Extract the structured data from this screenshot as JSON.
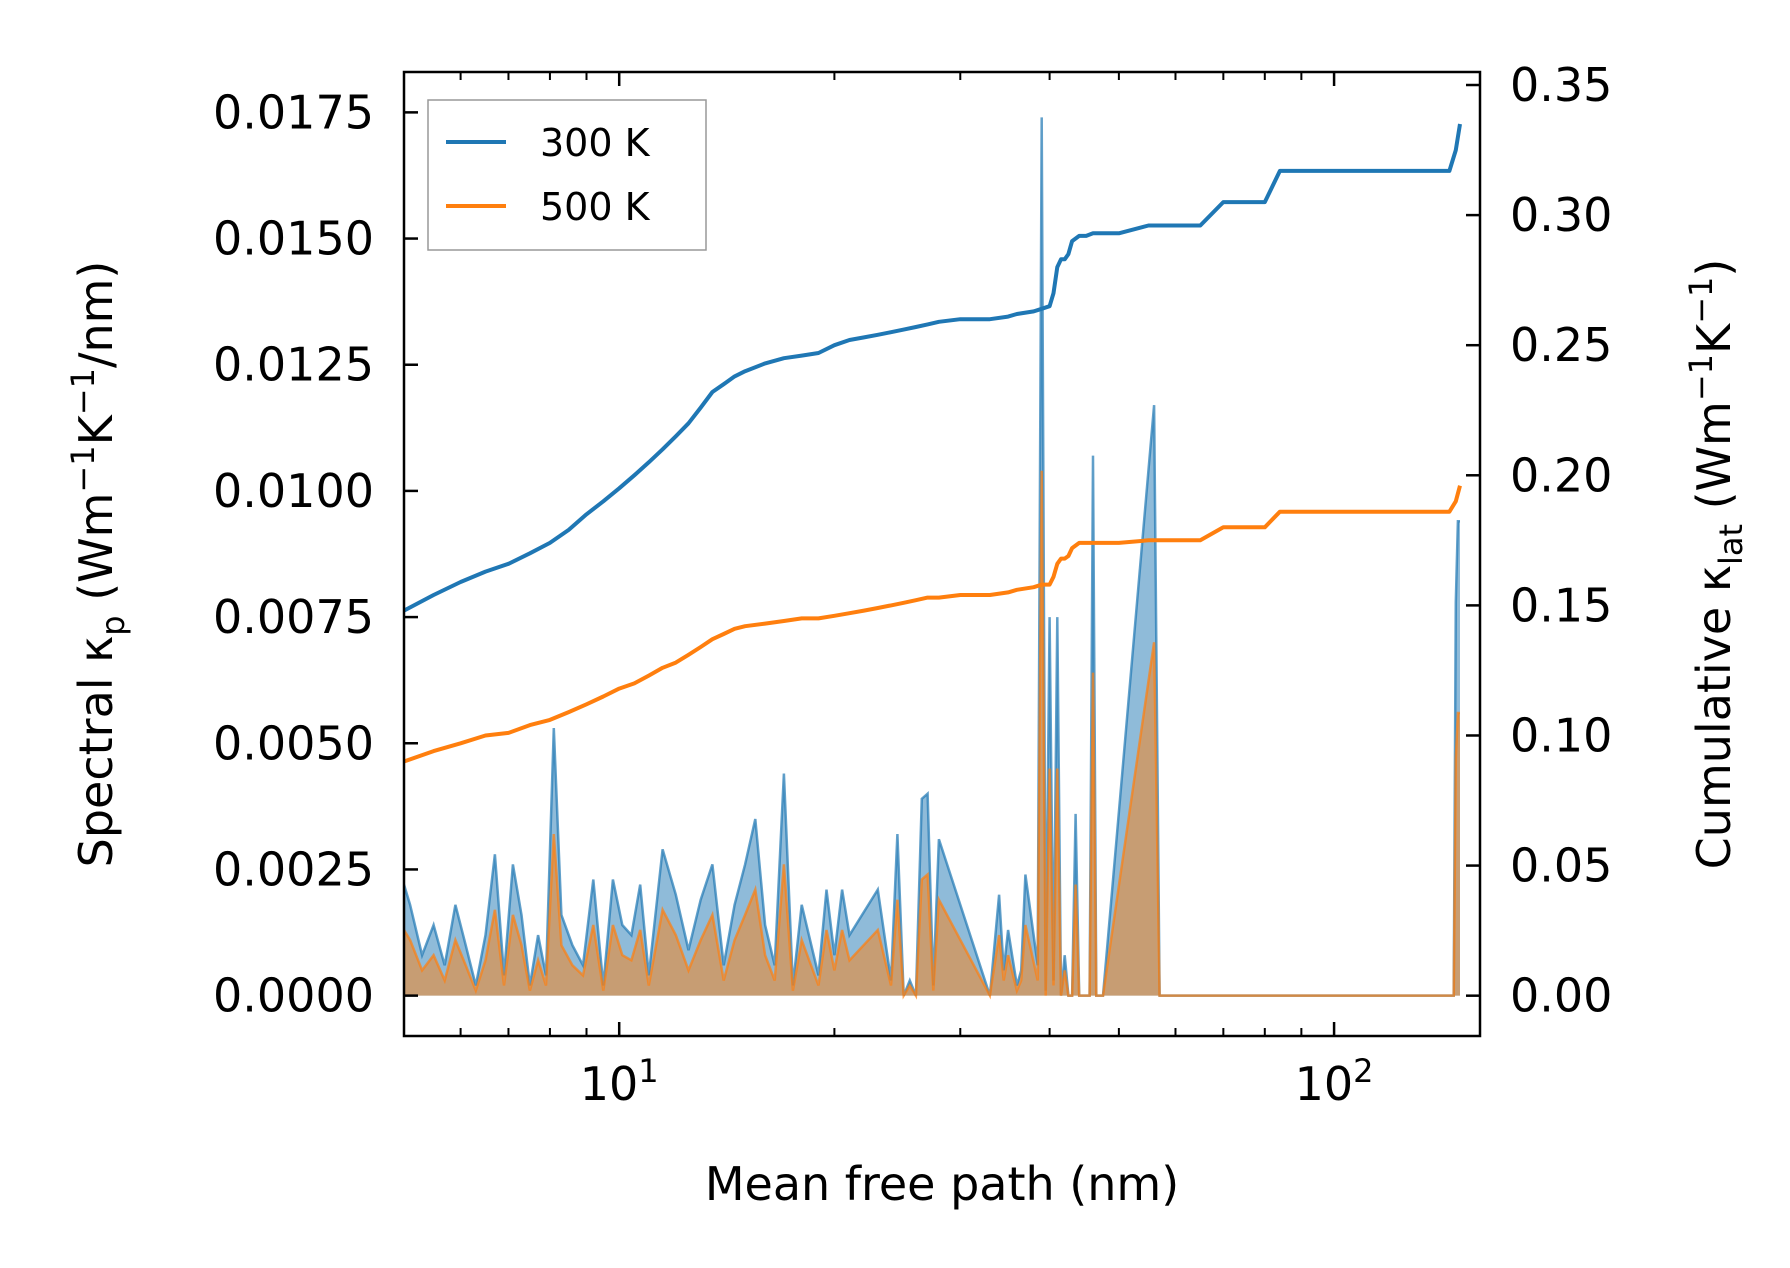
{
  "chart_data": {
    "type": "line",
    "xlabel": "Mean free path (nm)",
    "ylabel_left": {
      "main": "Spectral κ",
      "sub": "p",
      "unit_pre": " (Wm",
      "sup1": "−1",
      "unit_mid": "K",
      "sup2": "−1",
      "unit_post": "/nm)"
    },
    "ylabel_right": {
      "main": "Cumulative κ",
      "sub": "lat",
      "unit_pre": " (Wm",
      "sup1": "−1",
      "unit_mid": "K",
      "sup2": "−1",
      "unit_post": ")"
    },
    "x_scale": "log",
    "xlim": [
      5.0,
      160.0
    ],
    "ylim_left": [
      -0.0008,
      0.0183
    ],
    "ylim_right": [
      -0.0155,
      0.355
    ],
    "x_ticks": [
      {
        "value": 10,
        "base": "10",
        "exp": "1"
      },
      {
        "value": 100,
        "base": "10",
        "exp": "2"
      }
    ],
    "y_ticks_left": [
      {
        "value": 0.0,
        "label": "0.0000"
      },
      {
        "value": 0.0025,
        "label": "0.0025"
      },
      {
        "value": 0.005,
        "label": "0.0050"
      },
      {
        "value": 0.0075,
        "label": "0.0075"
      },
      {
        "value": 0.01,
        "label": "0.0100"
      },
      {
        "value": 0.0125,
        "label": "0.0125"
      },
      {
        "value": 0.015,
        "label": "0.0150"
      },
      {
        "value": 0.0175,
        "label": "0.0175"
      }
    ],
    "y_ticks_right": [
      {
        "value": 0.0,
        "label": "0.00"
      },
      {
        "value": 0.05,
        "label": "0.05"
      },
      {
        "value": 0.1,
        "label": "0.10"
      },
      {
        "value": 0.15,
        "label": "0.15"
      },
      {
        "value": 0.2,
        "label": "0.20"
      },
      {
        "value": 0.25,
        "label": "0.25"
      },
      {
        "value": 0.3,
        "label": "0.30"
      },
      {
        "value": 0.35,
        "label": "0.35"
      }
    ],
    "legend": {
      "position": "upper-left",
      "entries": [
        "300 K",
        "500 K"
      ]
    },
    "colors": {
      "300 K": "#1f77b4",
      "500 K": "#ff7f0e"
    },
    "series": [
      {
        "name": "300 K spectral",
        "axis": "left",
        "style": "filled-spikes",
        "color": "#1f77b4",
        "x": [
          5.0,
          5.1,
          5.3,
          5.5,
          5.7,
          5.9,
          6.1,
          6.3,
          6.5,
          6.7,
          6.9,
          7.1,
          7.3,
          7.5,
          7.7,
          7.9,
          8.1,
          8.3,
          8.6,
          8.9,
          9.2,
          9.5,
          9.8,
          10.1,
          10.4,
          10.7,
          11.0,
          11.5,
          12.0,
          12.5,
          13.0,
          13.5,
          14.0,
          14.5,
          15.0,
          15.5,
          16.0,
          16.5,
          17.0,
          17.5,
          18.0,
          19.0,
          19.5,
          20.0,
          20.5,
          21.0,
          23.0,
          24.0,
          24.5,
          25.0,
          25.5,
          26.0,
          26.5,
          27.0,
          27.5,
          28.0,
          33.0,
          34.0,
          34.5,
          35.0,
          36.0,
          36.5,
          37.0,
          38.5,
          39.0,
          39.5,
          40.0,
          40.5,
          41.0,
          41.5,
          42.0,
          42.5,
          43.0,
          43.5,
          44.0,
          44.5,
          45.0,
          45.5,
          46.0,
          46.5,
          47.0,
          47.5,
          56.0,
          57.0,
          58.0,
          70.0,
          71.0,
          72.0,
          73.0,
          84.0,
          85.0,
          86.0,
          87.0,
          145.0,
          146.0,
          147.0,
          148.0,
          149.0,
          150.0
        ],
        "values": [
          0.0022,
          0.0018,
          0.0008,
          0.0014,
          0.0006,
          0.0018,
          0.001,
          0.0002,
          0.0012,
          0.0028,
          0.0004,
          0.0026,
          0.0016,
          0.0002,
          0.0012,
          0.0004,
          0.0053,
          0.0016,
          0.001,
          0.0006,
          0.0023,
          0.0002,
          0.0023,
          0.0014,
          0.0012,
          0.0022,
          0.0004,
          0.0029,
          0.002,
          0.0009,
          0.0019,
          0.0026,
          0.0006,
          0.0018,
          0.0026,
          0.0035,
          0.0014,
          0.0006,
          0.0044,
          0.0002,
          0.0018,
          0.0004,
          0.0021,
          0.0008,
          0.0021,
          0.0012,
          0.0021,
          0.0003,
          0.0032,
          0.0,
          0.0003,
          0.0,
          0.0039,
          0.004,
          0.0002,
          0.0031,
          0.0,
          0.002,
          0.0005,
          0.0013,
          0.0002,
          0.0005,
          0.0024,
          0.0006,
          0.0174,
          0.0001,
          0.0075,
          0.0003,
          0.0075,
          0.0,
          0.0008,
          0.0,
          0.0,
          0.0036,
          0.0,
          0.0,
          0.0,
          0.0,
          0.0107,
          0.0,
          0.0,
          0.0,
          0.0117,
          0.0,
          0.0,
          0.0,
          0.0,
          0.0,
          0.0,
          0.0,
          0.0,
          0.0,
          0.0,
          0.0,
          0.0,
          0.0,
          0.0078,
          0.0094,
          0.0094
        ]
      },
      {
        "name": "500 K spectral",
        "axis": "left",
        "style": "filled-spikes",
        "color": "#ff7f0e",
        "x": [
          5.0,
          5.1,
          5.3,
          5.5,
          5.7,
          5.9,
          6.1,
          6.3,
          6.5,
          6.7,
          6.9,
          7.1,
          7.3,
          7.5,
          7.7,
          7.9,
          8.1,
          8.3,
          8.6,
          8.9,
          9.2,
          9.5,
          9.8,
          10.1,
          10.4,
          10.7,
          11.0,
          11.5,
          12.0,
          12.5,
          13.0,
          13.5,
          14.0,
          14.5,
          15.0,
          15.5,
          16.0,
          16.5,
          17.0,
          17.5,
          18.0,
          19.0,
          19.5,
          20.0,
          20.5,
          21.0,
          23.0,
          24.0,
          24.5,
          25.0,
          25.5,
          26.0,
          26.5,
          27.0,
          27.5,
          28.0,
          33.0,
          34.0,
          34.5,
          35.0,
          36.0,
          36.5,
          37.0,
          38.5,
          39.0,
          39.5,
          40.0,
          40.5,
          41.0,
          41.5,
          42.0,
          42.5,
          43.0,
          43.5,
          44.0,
          44.5,
          45.0,
          45.5,
          46.0,
          46.5,
          47.0,
          47.5,
          56.0,
          57.0,
          58.0,
          70.0,
          71.0,
          72.0,
          73.0,
          84.0,
          85.0,
          86.0,
          87.0,
          145.0,
          146.0,
          147.0,
          148.0,
          149.0,
          150.0
        ],
        "values": [
          0.0013,
          0.0011,
          0.0005,
          0.0008,
          0.0003,
          0.0011,
          0.0006,
          0.0001,
          0.0007,
          0.0017,
          0.0002,
          0.0016,
          0.001,
          0.0001,
          0.0007,
          0.0002,
          0.0032,
          0.001,
          0.0006,
          0.0004,
          0.0014,
          0.0001,
          0.0014,
          0.0008,
          0.0007,
          0.0013,
          0.0002,
          0.0017,
          0.0012,
          0.0005,
          0.0011,
          0.0016,
          0.0003,
          0.0011,
          0.0016,
          0.0021,
          0.0008,
          0.0003,
          0.0026,
          0.0001,
          0.0011,
          0.0002,
          0.0013,
          0.0005,
          0.0013,
          0.0007,
          0.0013,
          0.0002,
          0.0019,
          0.0,
          0.0002,
          0.0,
          0.0023,
          0.0024,
          0.0001,
          0.0019,
          0.0,
          0.0012,
          0.0003,
          0.0008,
          0.0001,
          0.0003,
          0.0014,
          0.0003,
          0.0104,
          0.0,
          0.0045,
          0.0002,
          0.0045,
          0.0,
          0.0005,
          0.0,
          0.0,
          0.0022,
          0.0,
          0.0,
          0.0,
          0.0,
          0.0064,
          0.0,
          0.0,
          0.0,
          0.007,
          0.0,
          0.0,
          0.0,
          0.0,
          0.0,
          0.0,
          0.0,
          0.0,
          0.0,
          0.0,
          0.0,
          0.0,
          0.0,
          0.0047,
          0.0056,
          0.0056
        ]
      },
      {
        "name": "300 K",
        "axis": "right",
        "style": "line",
        "color": "#1f77b4",
        "x": [
          5.0,
          5.5,
          6.0,
          6.5,
          7.0,
          7.5,
          8.0,
          8.5,
          9.0,
          9.5,
          10.0,
          10.5,
          11.0,
          11.5,
          12.0,
          12.5,
          13.0,
          13.5,
          14.0,
          14.5,
          15.0,
          16.0,
          17.0,
          18.0,
          19.0,
          20.0,
          21.0,
          22.0,
          23.0,
          24.0,
          25.0,
          26.0,
          27.0,
          28.0,
          30.0,
          33.0,
          35.0,
          36.0,
          38.0,
          39.0,
          40.0,
          40.5,
          41.0,
          41.5,
          42.0,
          42.5,
          43.0,
          44.0,
          45.0,
          46.0,
          50.0,
          55.0,
          56.0,
          60.0,
          65.0,
          70.0,
          71.0,
          75.0,
          80.0,
          84.0,
          85.0,
          90.0,
          100.0,
          120.0,
          145.0,
          148.0,
          150.0
        ],
        "values": [
          0.148,
          0.154,
          0.159,
          0.163,
          0.166,
          0.17,
          0.174,
          0.179,
          0.185,
          0.19,
          0.195,
          0.2,
          0.205,
          0.21,
          0.215,
          0.22,
          0.226,
          0.232,
          0.235,
          0.238,
          0.24,
          0.243,
          0.245,
          0.246,
          0.247,
          0.25,
          0.252,
          0.253,
          0.254,
          0.255,
          0.256,
          0.257,
          0.258,
          0.259,
          0.26,
          0.26,
          0.261,
          0.262,
          0.263,
          0.264,
          0.265,
          0.27,
          0.28,
          0.283,
          0.283,
          0.285,
          0.29,
          0.292,
          0.292,
          0.293,
          0.293,
          0.296,
          0.296,
          0.296,
          0.296,
          0.305,
          0.305,
          0.305,
          0.305,
          0.317,
          0.317,
          0.317,
          0.317,
          0.317,
          0.317,
          0.325,
          0.335
        ]
      },
      {
        "name": "500 K",
        "axis": "right",
        "style": "line",
        "color": "#ff7f0e",
        "x": [
          5.0,
          5.5,
          6.0,
          6.5,
          7.0,
          7.5,
          8.0,
          8.5,
          9.0,
          9.5,
          10.0,
          10.5,
          11.0,
          11.5,
          12.0,
          12.5,
          13.0,
          13.5,
          14.0,
          14.5,
          15.0,
          16.0,
          17.0,
          18.0,
          19.0,
          20.0,
          21.0,
          22.0,
          23.0,
          24.0,
          25.0,
          26.0,
          27.0,
          28.0,
          30.0,
          33.0,
          35.0,
          36.0,
          38.0,
          39.0,
          40.0,
          40.5,
          41.0,
          41.5,
          42.0,
          42.5,
          43.0,
          44.0,
          45.0,
          46.0,
          50.0,
          55.0,
          56.0,
          60.0,
          65.0,
          70.0,
          71.0,
          75.0,
          80.0,
          84.0,
          85.0,
          90.0,
          100.0,
          120.0,
          145.0,
          148.0,
          150.0
        ],
        "values": [
          0.09,
          0.094,
          0.097,
          0.1,
          0.101,
          0.104,
          0.106,
          0.109,
          0.112,
          0.115,
          0.118,
          0.12,
          0.123,
          0.126,
          0.128,
          0.131,
          0.134,
          0.137,
          0.139,
          0.141,
          0.142,
          0.143,
          0.144,
          0.145,
          0.145,
          0.146,
          0.147,
          0.148,
          0.149,
          0.15,
          0.151,
          0.152,
          0.153,
          0.153,
          0.154,
          0.154,
          0.155,
          0.156,
          0.157,
          0.158,
          0.158,
          0.161,
          0.166,
          0.168,
          0.168,
          0.169,
          0.172,
          0.174,
          0.174,
          0.174,
          0.174,
          0.175,
          0.175,
          0.175,
          0.175,
          0.18,
          0.18,
          0.18,
          0.18,
          0.186,
          0.186,
          0.186,
          0.186,
          0.186,
          0.186,
          0.19,
          0.196
        ]
      }
    ]
  }
}
